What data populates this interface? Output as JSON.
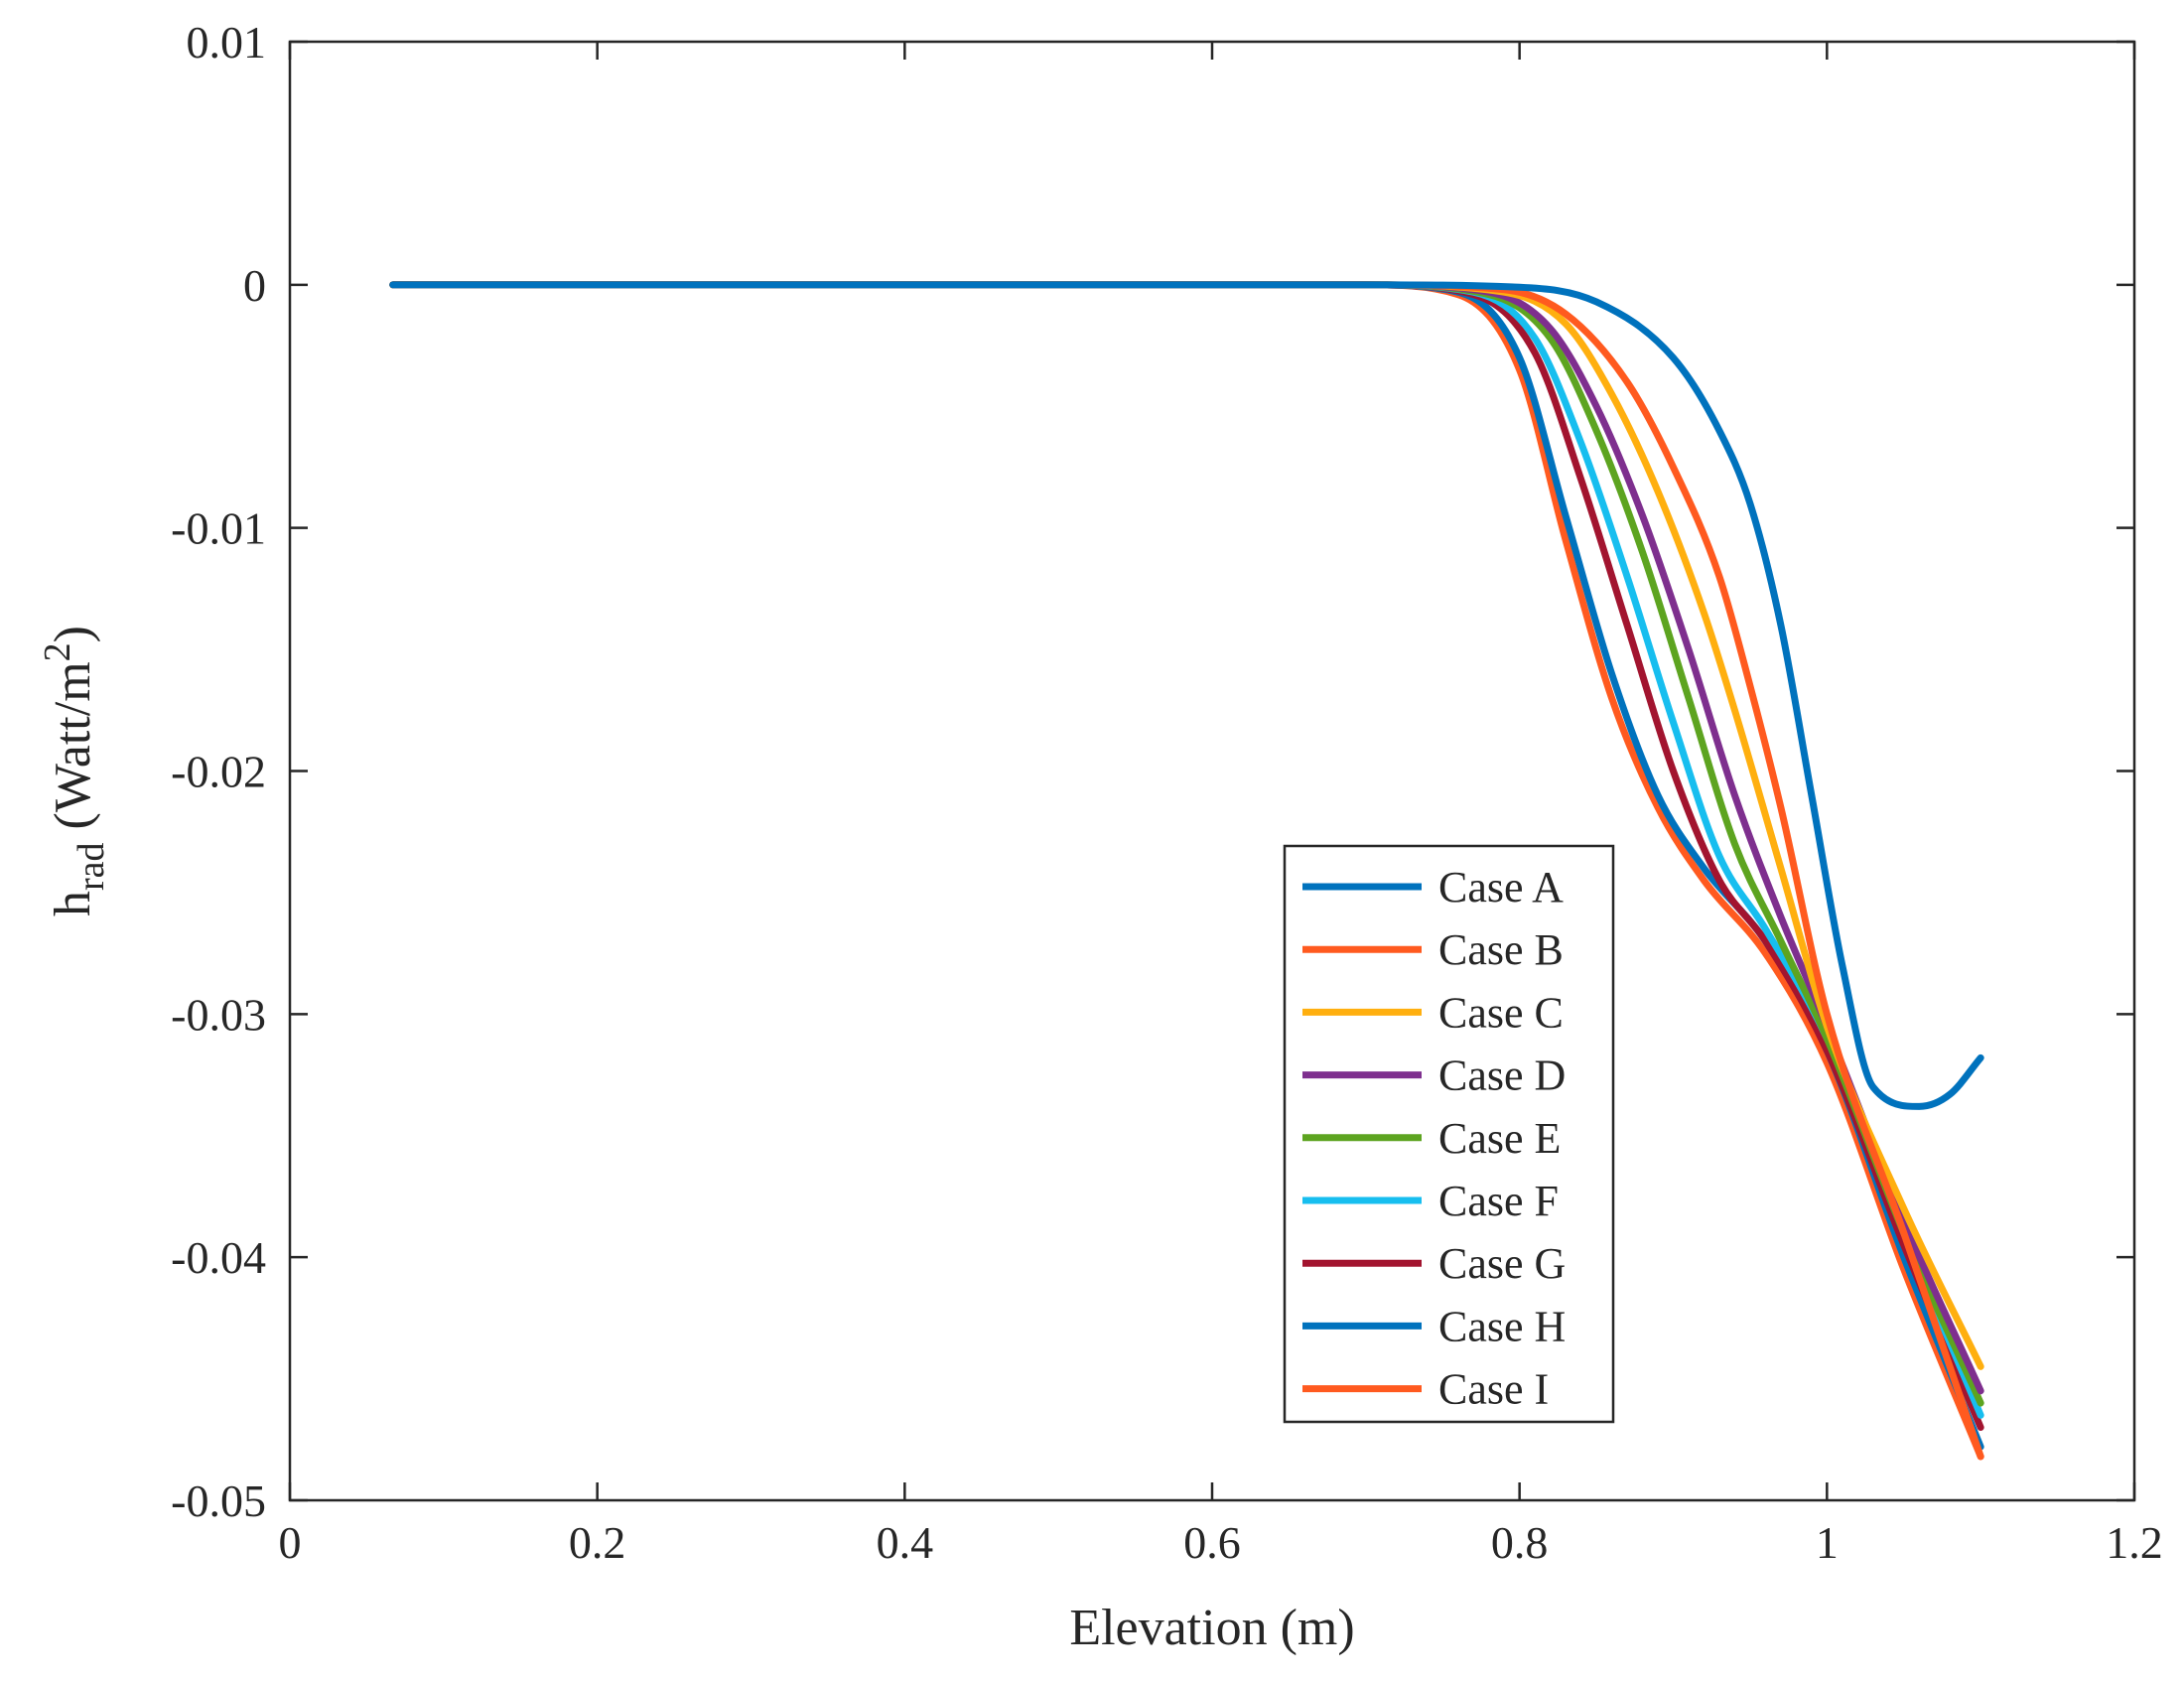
{
  "chart_data": {
    "type": "line",
    "title": "",
    "xlabel": "Elevation (m)",
    "ylabel": {
      "main": "h",
      "subscript": "rad",
      "units_pre": " (Watt/m",
      "units_sup": "2",
      "units_post": ")"
    },
    "xlim": [
      0,
      1.2
    ],
    "ylim": [
      -0.05,
      0.01
    ],
    "xticks": [
      0,
      0.2,
      0.4,
      0.6,
      0.8,
      1,
      1.2
    ],
    "xtick_labels": [
      "0",
      "0.2",
      "0.4",
      "0.6",
      "0.8",
      "1",
      "1.2"
    ],
    "yticks": [
      0.01,
      0,
      -0.01,
      -0.02,
      -0.03,
      -0.04,
      -0.05
    ],
    "ytick_labels": [
      "0.01",
      "0",
      "-0.01",
      "-0.02",
      "-0.03",
      "-0.04",
      "-0.05"
    ],
    "grid": false,
    "legend_position": "lower-right",
    "series": [
      {
        "name": "Case A",
        "color": "#0072BD",
        "x": [
          0.067,
          0.7,
          0.8,
          0.85,
          0.9,
          0.93,
          0.95,
          0.97,
          0.99,
          1.01,
          1.03,
          1.06,
          1.08,
          1.1
        ],
        "y": [
          0,
          0,
          -0.0001,
          -0.0007,
          -0.003,
          -0.006,
          -0.009,
          -0.014,
          -0.021,
          -0.028,
          -0.033,
          -0.0338,
          -0.0333,
          -0.0318
        ]
      },
      {
        "name": "Case B",
        "color": "#FF5A1F",
        "x": [
          0.067,
          0.7,
          0.79,
          0.83,
          0.87,
          0.9,
          0.93,
          0.95,
          0.97,
          1.0,
          1.05,
          1.1
        ],
        "y": [
          0,
          0,
          -0.0002,
          -0.0012,
          -0.004,
          -0.0075,
          -0.012,
          -0.0165,
          -0.0215,
          -0.03,
          -0.039,
          -0.0482
        ]
      },
      {
        "name": "Case C",
        "color": "#FFAF0F",
        "x": [
          0.067,
          0.7,
          0.79,
          0.83,
          0.86,
          0.89,
          0.92,
          0.94,
          0.97,
          1.0,
          1.05,
          1.1
        ],
        "y": [
          0,
          0,
          -0.0003,
          -0.0016,
          -0.0045,
          -0.0085,
          -0.0135,
          -0.0175,
          -0.024,
          -0.0305,
          -0.038,
          -0.0445
        ]
      },
      {
        "name": "Case D",
        "color": "#7E2F8E",
        "x": [
          0.067,
          0.7,
          0.78,
          0.82,
          0.85,
          0.88,
          0.91,
          0.94,
          0.97,
          1.0,
          1.05,
          1.1
        ],
        "y": [
          0,
          0,
          -0.0003,
          -0.0018,
          -0.005,
          -0.0095,
          -0.015,
          -0.021,
          -0.026,
          -0.0305,
          -0.0385,
          -0.0455
        ]
      },
      {
        "name": "Case E",
        "color": "#5DA420",
        "x": [
          0.067,
          0.7,
          0.78,
          0.82,
          0.85,
          0.88,
          0.91,
          0.94,
          0.97,
          1.0,
          1.05,
          1.1
        ],
        "y": [
          0,
          0,
          -0.0004,
          -0.0022,
          -0.006,
          -0.011,
          -0.017,
          -0.023,
          -0.027,
          -0.031,
          -0.039,
          -0.046
        ]
      },
      {
        "name": "Case F",
        "color": "#17BEEF",
        "x": [
          0.067,
          0.7,
          0.77,
          0.81,
          0.84,
          0.87,
          0.9,
          0.93,
          0.96,
          1.0,
          1.05,
          1.1
        ],
        "y": [
          0,
          0,
          -0.0003,
          -0.0022,
          -0.0065,
          -0.012,
          -0.018,
          -0.0235,
          -0.0265,
          -0.031,
          -0.039,
          -0.0465
        ]
      },
      {
        "name": "Case G",
        "color": "#A2142F",
        "x": [
          0.067,
          0.7,
          0.77,
          0.81,
          0.84,
          0.87,
          0.9,
          0.93,
          0.96,
          1.0,
          1.05,
          1.1
        ],
        "y": [
          0,
          0,
          -0.0004,
          -0.0028,
          -0.008,
          -0.014,
          -0.02,
          -0.0245,
          -0.027,
          -0.0315,
          -0.0395,
          -0.047
        ]
      },
      {
        "name": "Case H",
        "color": "#0072BD",
        "x": [
          0.067,
          0.7,
          0.76,
          0.8,
          0.83,
          0.86,
          0.89,
          0.92,
          0.96,
          1.0,
          1.05,
          1.1
        ],
        "y": [
          0,
          0,
          -0.0003,
          -0.003,
          -0.0095,
          -0.016,
          -0.021,
          -0.024,
          -0.027,
          -0.0315,
          -0.04,
          -0.0478
        ]
      },
      {
        "name": "Case I",
        "color": "#FF5A1F",
        "x": [
          0.067,
          0.7,
          0.76,
          0.8,
          0.83,
          0.86,
          0.89,
          0.92,
          0.96,
          1.0,
          1.05,
          1.1
        ],
        "y": [
          0,
          0,
          -0.0004,
          -0.0035,
          -0.0105,
          -0.017,
          -0.0215,
          -0.0245,
          -0.0275,
          -0.032,
          -0.0405,
          -0.0482
        ]
      }
    ]
  }
}
